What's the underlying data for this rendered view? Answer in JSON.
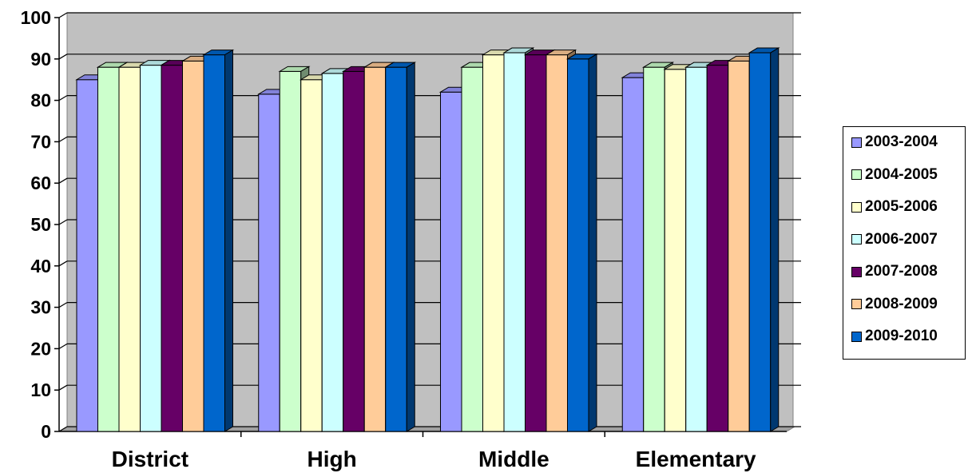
{
  "chart_data": {
    "type": "bar",
    "categories": [
      "District",
      "High",
      "Middle",
      "Elementary"
    ],
    "series": [
      {
        "name": "2003-2004",
        "color": "#9999FF",
        "values": [
          85,
          81.5,
          82,
          85.5
        ]
      },
      {
        "name": "2004-2005",
        "color": "#CCFFCC",
        "values": [
          88,
          87,
          88,
          88
        ]
      },
      {
        "name": "2005-2006",
        "color": "#FFFFCC",
        "values": [
          88,
          85,
          91,
          87.5
        ]
      },
      {
        "name": "2006-2007",
        "color": "#CCFFFF",
        "values": [
          88.5,
          86.5,
          91.5,
          88
        ]
      },
      {
        "name": "2007-2008",
        "color": "#660066",
        "values": [
          88.5,
          87,
          91,
          88.5
        ]
      },
      {
        "name": "2008-2009",
        "color": "#FFCC99",
        "values": [
          89.5,
          88,
          91,
          89.5
        ]
      },
      {
        "name": "2009-2010",
        "color": "#0066CC",
        "values": [
          91,
          88,
          90,
          91.5
        ]
      }
    ],
    "y_ticks": [
      "0",
      "10",
      "20",
      "30",
      "40",
      "50",
      "60",
      "70",
      "80",
      "90",
      "100"
    ],
    "ylim": [
      0,
      100
    ],
    "title": "",
    "xlabel": "",
    "ylabel": "",
    "grid": true,
    "legend_position": "right",
    "plot_wall_color": "#C0C0C0"
  }
}
